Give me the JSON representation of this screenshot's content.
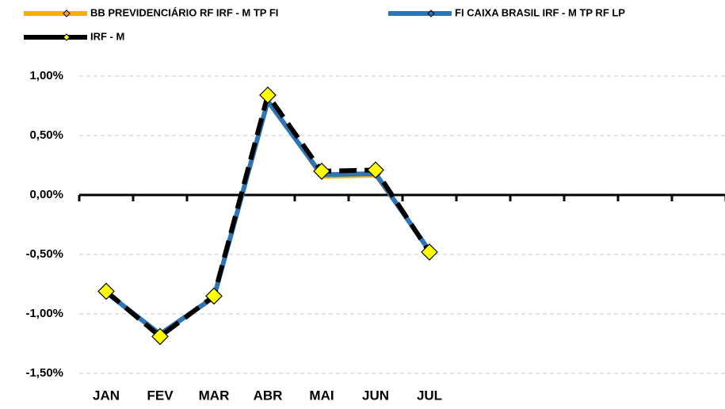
{
  "chart_data": {
    "type": "line",
    "categories": [
      "JAN",
      "FEV",
      "MAR",
      "ABR",
      "MAI",
      "JUN",
      "JUL",
      null,
      null,
      null,
      null,
      null
    ],
    "series": [
      {
        "name": "BB PREVIDENCIÁRIO RF IRF - M TP FI",
        "color": "#f2b100",
        "values": [
          -0.81,
          -1.17,
          -0.85,
          0.8,
          0.15,
          0.16,
          -0.46,
          null,
          null,
          null,
          null,
          null
        ]
      },
      {
        "name": "FI CAIXA BRASIL IRF - M TP RF LP",
        "color": "#2e75b6",
        "values": [
          -0.82,
          -1.17,
          -0.86,
          0.79,
          0.17,
          0.18,
          -0.47,
          null,
          null,
          null,
          null,
          null
        ]
      },
      {
        "name": "IRF - M",
        "color": "#000000",
        "marker_color": "#ffff00",
        "values": [
          -0.81,
          -1.19,
          -0.85,
          0.84,
          0.2,
          0.21,
          -0.48,
          null,
          null,
          null,
          null,
          null
        ]
      }
    ],
    "ylim": [
      -1.5,
      1.0
    ],
    "yticks": [
      {
        "value": 1.0,
        "label": "1,00%"
      },
      {
        "value": 0.5,
        "label": "0,50%"
      },
      {
        "value": 0,
        "label": "0,00%"
      },
      {
        "value": -0.5,
        "label": "-0,50%"
      },
      {
        "value": -1.0,
        "label": "-1,00%"
      },
      {
        "value": -1.5,
        "label": "-1,50%"
      }
    ],
    "grid": true,
    "legend": "top"
  }
}
